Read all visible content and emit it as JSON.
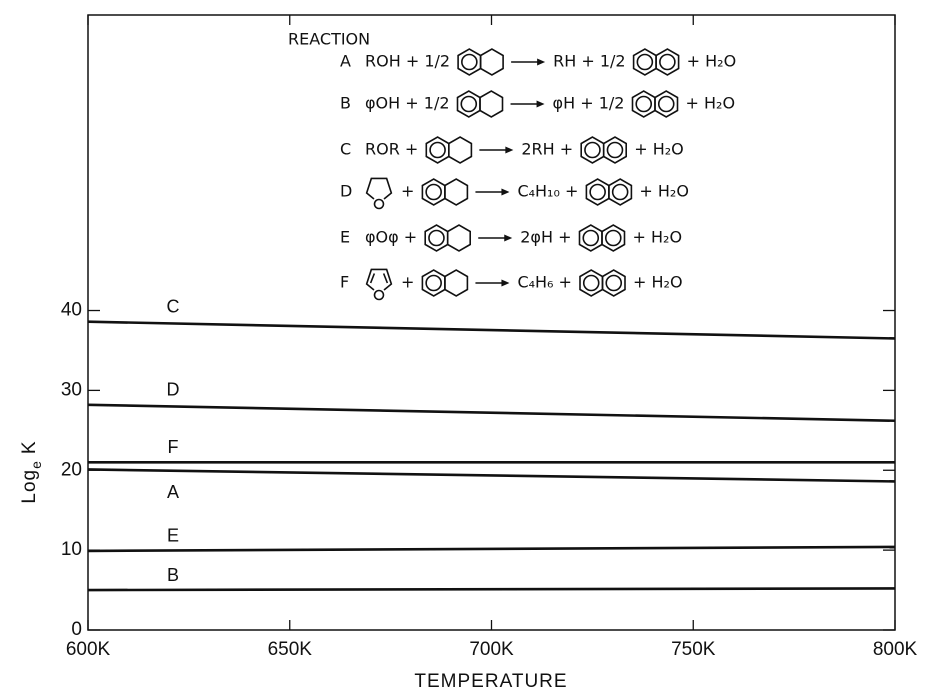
{
  "chart_data": {
    "type": "line",
    "x_label": "TEMPERATURE",
    "y_label": {
      "main": "Log",
      "sub": "e",
      "tail": "K"
    },
    "x": [
      600,
      800
    ],
    "xlim": [
      600,
      800
    ],
    "xticks": [
      {
        "value": 600,
        "label": "600K"
      },
      {
        "value": 650,
        "label": "650K"
      },
      {
        "value": 700,
        "label": "700K"
      },
      {
        "value": 750,
        "label": "750K"
      },
      {
        "value": 800,
        "label": "800K"
      }
    ],
    "ylim": [
      0,
      77
    ],
    "yticks": [
      0,
      10,
      20,
      30,
      40
    ],
    "series": [
      {
        "name": "C",
        "color": "#111111",
        "values": [
          38.6,
          36.5
        ]
      },
      {
        "name": "D",
        "color": "#111111",
        "values": [
          28.2,
          26.2
        ]
      },
      {
        "name": "F",
        "color": "#111111",
        "values": [
          21.0,
          21.0
        ]
      },
      {
        "name": "A",
        "color": "#111111",
        "values": [
          20.1,
          18.6
        ]
      },
      {
        "name": "E",
        "color": "#111111",
        "values": [
          9.9,
          10.4
        ]
      },
      {
        "name": "B",
        "color": "#111111",
        "values": [
          5.0,
          5.2
        ]
      }
    ],
    "reaction_legend": {
      "title": "REACTION",
      "rows": [
        {
          "letter": "A",
          "tokens": [
            {
              "text": "ROH + 1/2"
            },
            {
              "icon": "tetralin"
            },
            {
              "icon": "arrow"
            },
            {
              "text": "RH + 1/2"
            },
            {
              "icon": "naphthalene"
            },
            {
              "text": "+ H₂O"
            }
          ]
        },
        {
          "letter": "B",
          "tokens": [
            {
              "text": "φOH + 1/2"
            },
            {
              "icon": "tetralin"
            },
            {
              "icon": "arrow"
            },
            {
              "text": "φH + 1/2"
            },
            {
              "icon": "naphthalene"
            },
            {
              "text": "+ H₂O"
            }
          ]
        },
        {
          "letter": "C",
          "tokens": [
            {
              "text": "ROR +"
            },
            {
              "icon": "tetralin"
            },
            {
              "icon": "arrow"
            },
            {
              "text": "2RH +"
            },
            {
              "icon": "naphthalene"
            },
            {
              "text": "+ H₂O"
            }
          ]
        },
        {
          "letter": "D",
          "tokens": [
            {
              "icon": "thf"
            },
            {
              "text": "+"
            },
            {
              "icon": "tetralin"
            },
            {
              "icon": "arrow"
            },
            {
              "text": "C₄H₁₀ +"
            },
            {
              "icon": "naphthalene"
            },
            {
              "text": "+ H₂O"
            }
          ]
        },
        {
          "letter": "E",
          "tokens": [
            {
              "text": "φOφ +"
            },
            {
              "icon": "tetralin"
            },
            {
              "icon": "arrow"
            },
            {
              "text": "2φH +"
            },
            {
              "icon": "naphthalene"
            },
            {
              "text": "+ H₂O"
            }
          ]
        },
        {
          "letter": "F",
          "tokens": [
            {
              "icon": "furan"
            },
            {
              "text": "+"
            },
            {
              "icon": "tetralin"
            },
            {
              "icon": "arrow"
            },
            {
              "text": "C₄H₆ +"
            },
            {
              "icon": "naphthalene"
            },
            {
              "text": "+ H₂O"
            }
          ]
        }
      ]
    }
  }
}
